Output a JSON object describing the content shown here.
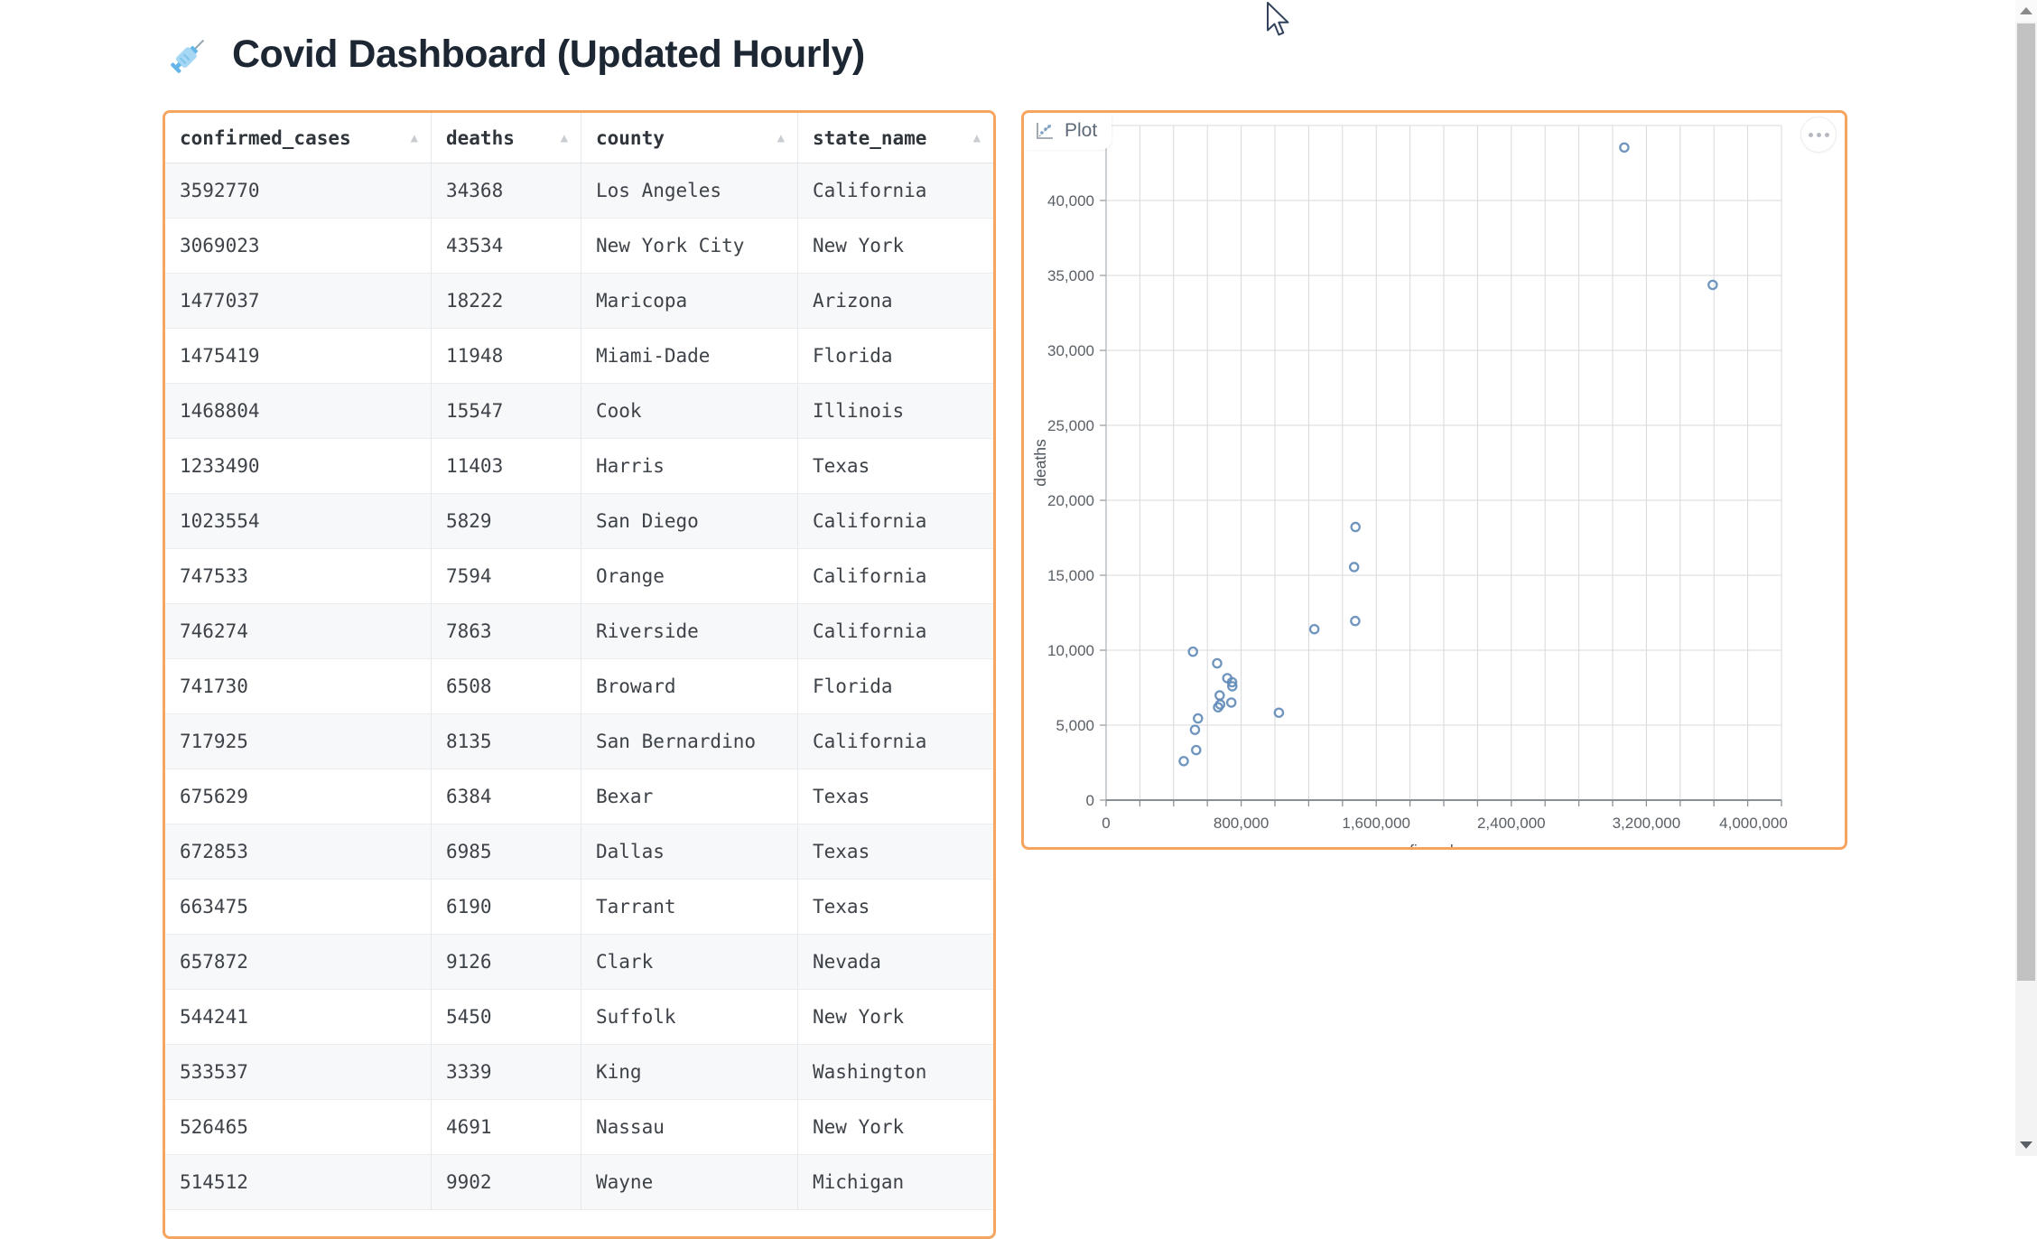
{
  "page": {
    "title": "Covid Dashboard (Updated Hourly)",
    "title_icon": "syringe-icon"
  },
  "colors": {
    "accent_orange": "#f5a55f",
    "point_blue": "#5f8ab8",
    "grid_gray": "#d8d9db",
    "axis_gray": "#8a8f94",
    "title_navy": "#1d2733"
  },
  "table": {
    "columns": [
      {
        "label": "confirmed_cases",
        "sort_icon": "▲"
      },
      {
        "label": "deaths",
        "sort_icon": "▲"
      },
      {
        "label": "county",
        "sort_icon": "▲"
      },
      {
        "label": "state_name",
        "sort_icon": "▲"
      }
    ],
    "rows": [
      [
        "3592770",
        "34368",
        "Los Angeles",
        "California"
      ],
      [
        "3069023",
        "43534",
        "New York City",
        "New York"
      ],
      [
        "1477037",
        "18222",
        "Maricopa",
        "Arizona"
      ],
      [
        "1475419",
        "11948",
        "Miami-Dade",
        "Florida"
      ],
      [
        "1468804",
        "15547",
        "Cook",
        "Illinois"
      ],
      [
        "1233490",
        "11403",
        "Harris",
        "Texas"
      ],
      [
        "1023554",
        "5829",
        "San Diego",
        "California"
      ],
      [
        "747533",
        "7594",
        "Orange",
        "California"
      ],
      [
        "746274",
        "7863",
        "Riverside",
        "California"
      ],
      [
        "741730",
        "6508",
        "Broward",
        "Florida"
      ],
      [
        "717925",
        "8135",
        "San Bernardino",
        "California"
      ],
      [
        "675629",
        "6384",
        "Bexar",
        "Texas"
      ],
      [
        "672853",
        "6985",
        "Dallas",
        "Texas"
      ],
      [
        "663475",
        "6190",
        "Tarrant",
        "Texas"
      ],
      [
        "657872",
        "9126",
        "Clark",
        "Nevada"
      ],
      [
        "544241",
        "5450",
        "Suffolk",
        "New York"
      ],
      [
        "533537",
        "3339",
        "King",
        "Washington"
      ],
      [
        "526465",
        "4691",
        "Nassau",
        "New York"
      ],
      [
        "514512",
        "9902",
        "Wayne",
        "Michigan"
      ]
    ]
  },
  "plot": {
    "tab_label": "Plot",
    "tab_icon": "scatter-chart-icon",
    "menu_icon": "ellipsis-icon"
  },
  "chart_data": {
    "type": "scatter",
    "x": [
      3592770,
      3069023,
      1477037,
      1475419,
      1468804,
      1233490,
      1023554,
      747533,
      746274,
      741730,
      717925,
      675629,
      672853,
      663475,
      657872,
      544241,
      533537,
      526465,
      514512,
      460000
    ],
    "y": [
      34368,
      43534,
      18222,
      11948,
      15547,
      11403,
      5829,
      7594,
      7863,
      6508,
      8135,
      6384,
      6985,
      6190,
      9126,
      5450,
      3339,
      4691,
      9902,
      2600
    ],
    "xlabel": "confirmed_cases",
    "ylabel": "deaths",
    "xlim": [
      0,
      4000000
    ],
    "ylim": [
      0,
      45000
    ],
    "x_major_ticks": [
      0,
      800000,
      1600000,
      2400000,
      3200000,
      4000000
    ],
    "x_major_tick_labels": [
      "0",
      "800,000",
      "1,600,000",
      "2,400,000",
      "3,200,000",
      "4,000,000"
    ],
    "x_grid_step": 200000,
    "y_tick_step": 5000,
    "y_tick_labels": [
      "0",
      "5,000",
      "10,000",
      "15,000",
      "20,000",
      "25,000",
      "30,000",
      "35,000",
      "40,000"
    ],
    "grid": true,
    "legend": false
  }
}
